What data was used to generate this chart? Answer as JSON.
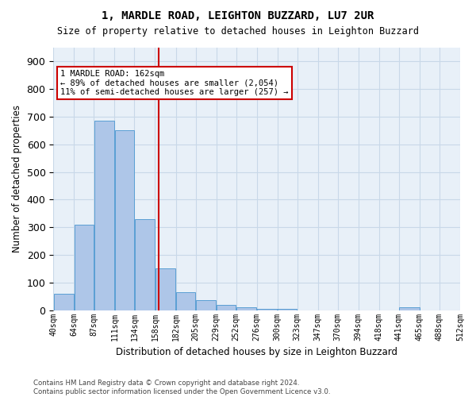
{
  "title1": "1, MARDLE ROAD, LEIGHTON BUZZARD, LU7 2UR",
  "title2": "Size of property relative to detached houses in Leighton Buzzard",
  "xlabel": "Distribution of detached houses by size in Leighton Buzzard",
  "ylabel": "Number of detached properties",
  "footnote": "Contains HM Land Registry data © Crown copyright and database right 2024.\nContains public sector information licensed under the Open Government Licence v3.0.",
  "bar_edges": [
    40,
    64,
    87,
    111,
    134,
    158,
    182,
    205,
    229,
    252,
    276,
    300,
    323,
    347,
    370,
    394,
    418,
    441,
    465,
    488,
    512
  ],
  "bar_heights": [
    60,
    310,
    685,
    650,
    330,
    150,
    65,
    35,
    20,
    10,
    5,
    5,
    0,
    0,
    0,
    0,
    0,
    10,
    0,
    0
  ],
  "bar_color": "#aec6e8",
  "bar_edge_color": "#5a9fd4",
  "vline_x": 162,
  "vline_color": "#cc0000",
  "annotation_text": "1 MARDLE ROAD: 162sqm\n← 89% of detached houses are smaller (2,054)\n11% of semi-detached houses are larger (257) →",
  "annotation_box_color": "#cc0000",
  "ylim": [
    0,
    950
  ],
  "yticks": [
    0,
    100,
    200,
    300,
    400,
    500,
    600,
    700,
    800,
    900
  ],
  "grid_color": "#c8d8e8",
  "bg_color": "#e8f0f8",
  "tick_labels": [
    "40sqm",
    "64sqm",
    "87sqm",
    "111sqm",
    "134sqm",
    "158sqm",
    "182sqm",
    "205sqm",
    "229sqm",
    "252sqm",
    "276sqm",
    "300sqm",
    "323sqm",
    "347sqm",
    "370sqm",
    "394sqm",
    "418sqm",
    "441sqm",
    "465sqm",
    "488sqm",
    "512sqm"
  ]
}
